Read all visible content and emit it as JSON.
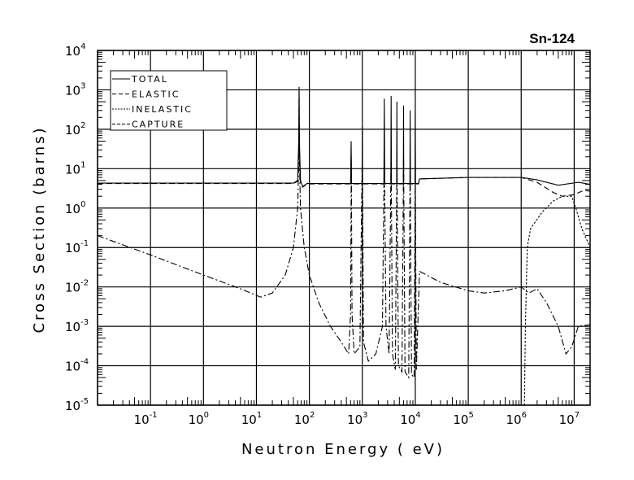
{
  "chart_data": {
    "type": "line",
    "title": "Sn-124",
    "xlabel": "Neutron Energy ( eV)",
    "ylabel": "Cross Section (barns)",
    "xscale": "log",
    "yscale": "log",
    "xlim": [
      0.01,
      20000000
    ],
    "ylim": [
      1e-05,
      10000
    ],
    "x_tick_exponents": [
      -1,
      0,
      1,
      2,
      3,
      4,
      5,
      6,
      7
    ],
    "y_tick_exponents": [
      -5,
      -4,
      -3,
      -2,
      -1,
      0,
      1,
      2,
      3,
      4
    ],
    "tick_base": "10",
    "grid": true,
    "legend_position": "top-left",
    "series": [
      {
        "name": "TOTAL",
        "style": "solid",
        "points": [
          [
            0.01,
            4.3
          ],
          [
            50,
            4.3
          ],
          [
            60,
            5
          ],
          [
            63,
            50
          ],
          [
            64,
            1200
          ],
          [
            65,
            50
          ],
          [
            68,
            5
          ],
          [
            75,
            3.5
          ],
          [
            90,
            4.2
          ],
          [
            600,
            4.2
          ],
          [
            615,
            50
          ],
          [
            625,
            4.2
          ],
          [
            990,
            4.2
          ],
          [
            1000,
            120
          ],
          [
            1010,
            4.2
          ],
          [
            2550,
            4.2
          ],
          [
            2600,
            600
          ],
          [
            2650,
            4.2
          ],
          [
            3450,
            4.2
          ],
          [
            3500,
            700
          ],
          [
            3550,
            4.2
          ],
          [
            4450,
            4.2
          ],
          [
            4500,
            500
          ],
          [
            4550,
            4.2
          ],
          [
            5950,
            4.2
          ],
          [
            6000,
            400
          ],
          [
            6050,
            4.2
          ],
          [
            7900,
            4.2
          ],
          [
            8000,
            300
          ],
          [
            8100,
            4.2
          ],
          [
            9900,
            4.2
          ],
          [
            10000,
            280
          ],
          [
            10100,
            4.2
          ],
          [
            11500,
            4.2
          ],
          [
            12000,
            5.5
          ],
          [
            100000,
            6
          ],
          [
            1000000,
            6
          ],
          [
            2000000,
            5.2
          ],
          [
            5000000,
            3.8
          ],
          [
            12000000,
            4.5
          ],
          [
            20000000,
            4
          ]
        ]
      },
      {
        "name": "ELASTIC",
        "style": "dashed",
        "points": [
          [
            0.01,
            4.2
          ],
          [
            50,
            4.2
          ],
          [
            60,
            4.8
          ],
          [
            63,
            30
          ],
          [
            64,
            900
          ],
          [
            65,
            30
          ],
          [
            68,
            4.5
          ],
          [
            75,
            3.4
          ],
          [
            90,
            4.1
          ],
          [
            11500,
            4.1
          ],
          [
            12000,
            5.5
          ],
          [
            100000,
            6
          ],
          [
            1000000,
            6
          ],
          [
            2000000,
            4.5
          ],
          [
            4000000,
            2.5
          ],
          [
            6000000,
            2
          ],
          [
            10000000,
            2.2
          ],
          [
            15000000,
            2.8
          ],
          [
            20000000,
            2.7
          ]
        ]
      },
      {
        "name": "INELASTIC",
        "style": "dotted",
        "points": [
          [
            1150000,
            1e-05
          ],
          [
            1200000,
            0.001
          ],
          [
            1300000,
            0.1
          ],
          [
            1500000,
            0.3
          ],
          [
            2500000,
            0.8
          ],
          [
            4000000,
            1.5
          ],
          [
            6000000,
            2
          ],
          [
            9000000,
            2
          ],
          [
            11000000,
            0.9
          ],
          [
            14000000,
            0.3
          ],
          [
            20000000,
            0.1
          ]
        ]
      },
      {
        "name": "CAPTURE",
        "style": "dashdot",
        "points": [
          [
            0.01,
            0.2
          ],
          [
            0.1,
            0.065
          ],
          [
            1,
            0.02
          ],
          [
            5,
            0.009
          ],
          [
            12,
            0.0055
          ],
          [
            20,
            0.007
          ],
          [
            35,
            0.02
          ],
          [
            50,
            0.1
          ],
          [
            60,
            1
          ],
          [
            64,
            35
          ],
          [
            68,
            1
          ],
          [
            80,
            0.1
          ],
          [
            100,
            0.02
          ],
          [
            150,
            0.004
          ],
          [
            250,
            0.001
          ],
          [
            400,
            0.0004
          ],
          [
            550,
            0.0002
          ],
          [
            600,
            0.002
          ],
          [
            620,
            20
          ],
          [
            640,
            0.002
          ],
          [
            700,
            0.0002
          ],
          [
            900,
            0.0003
          ],
          [
            1000,
            50
          ],
          [
            1050,
            0.0004
          ],
          [
            1300,
            0.00013
          ],
          [
            1800,
            0.0002
          ],
          [
            2400,
            0.001
          ],
          [
            2600,
            30
          ],
          [
            2800,
            0.001
          ],
          [
            3200,
            0.0002
          ],
          [
            3500,
            30
          ],
          [
            3700,
            0.0002
          ],
          [
            4200,
            8e-05
          ],
          [
            4500,
            20
          ],
          [
            4800,
            0.0001
          ],
          [
            5600,
            7e-05
          ],
          [
            6000,
            20
          ],
          [
            6400,
            7e-05
          ],
          [
            7500,
            5e-05
          ],
          [
            8000,
            15
          ],
          [
            8500,
            6e-05
          ],
          [
            9500,
            5e-05
          ],
          [
            10000,
            10
          ],
          [
            10500,
            8e-05
          ],
          [
            12000,
            0.025
          ],
          [
            30000,
            0.013
          ],
          [
            100000,
            0.008
          ],
          [
            200000,
            0.007
          ],
          [
            500000,
            0.008
          ],
          [
            1000000,
            0.01
          ],
          [
            1400000,
            0.007
          ],
          [
            2000000,
            0.009
          ],
          [
            3000000,
            0.004
          ],
          [
            5000000,
            0.001
          ],
          [
            7000000,
            0.0002
          ],
          [
            9000000,
            0.0003
          ],
          [
            12000000,
            0.001
          ],
          [
            20000000,
            0.0011
          ]
        ]
      }
    ]
  }
}
